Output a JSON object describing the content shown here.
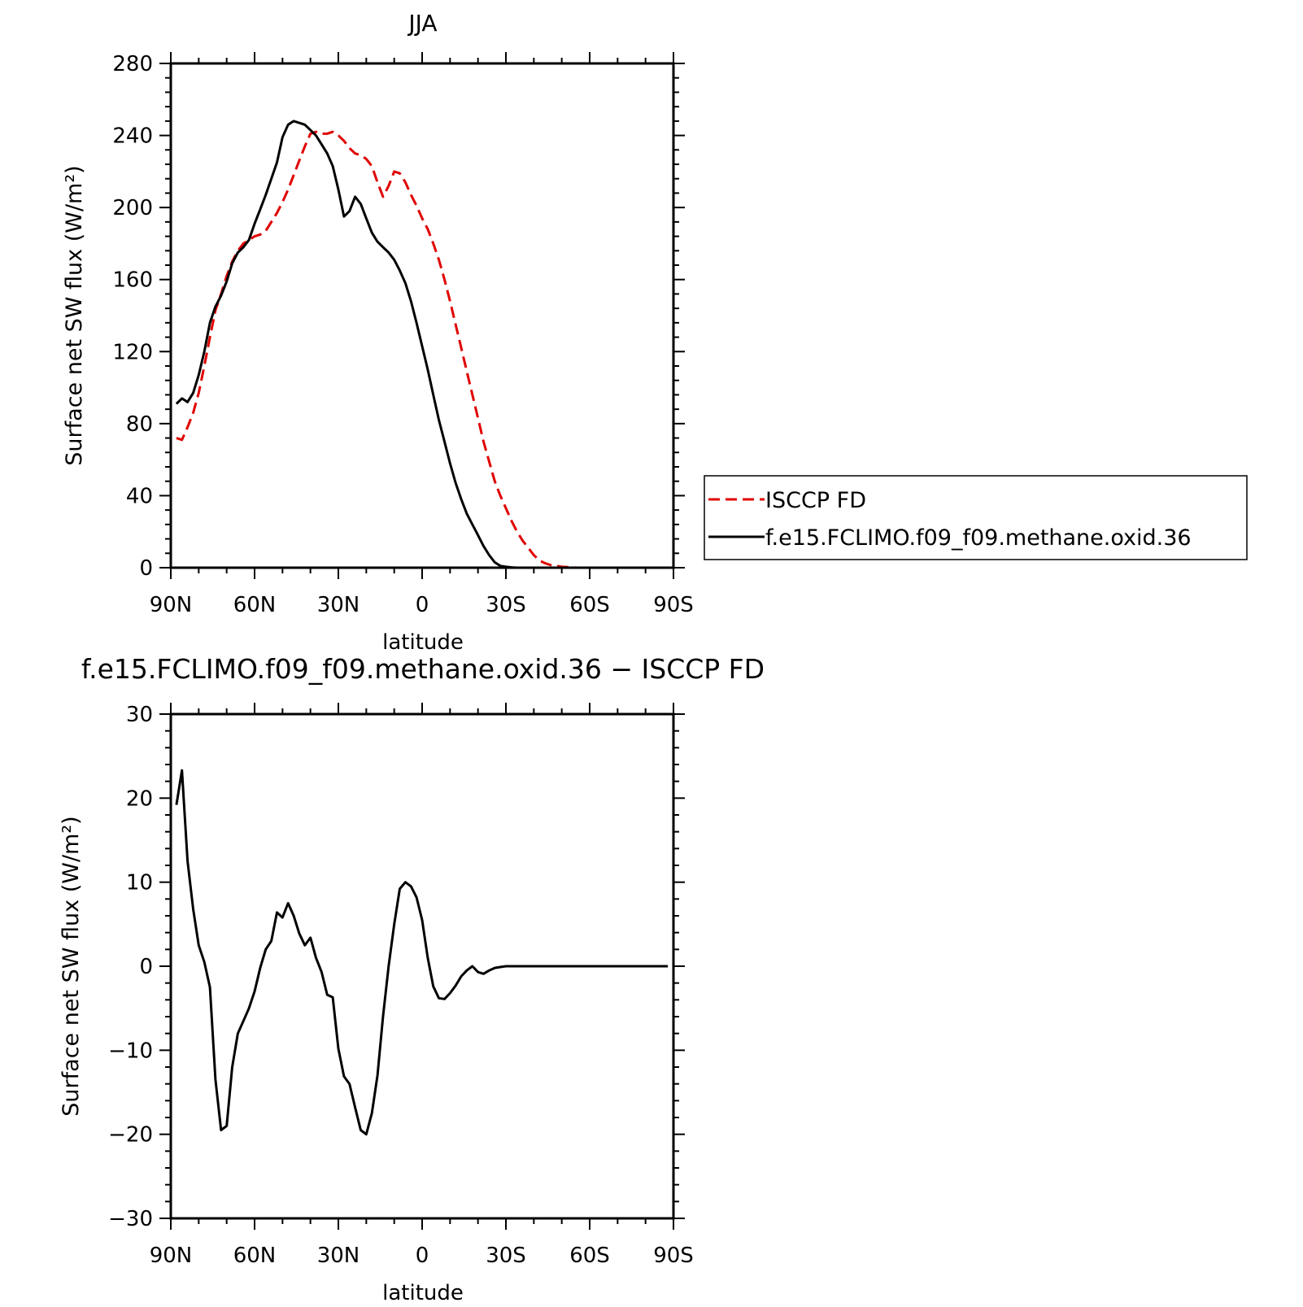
{
  "chart_data": [
    {
      "type": "line",
      "title": "JJA",
      "xlabel": "latitude",
      "ylabel": "Surface net SW flux (W/m²)",
      "xlim": [
        90,
        -90
      ],
      "ylim": [
        0,
        280
      ],
      "xticks": [
        90,
        60,
        30,
        0,
        -30,
        -60,
        -90
      ],
      "xtick_labels": [
        "90N",
        "60N",
        "30N",
        "0",
        "30S",
        "60S",
        "90S"
      ],
      "yticks": [
        0,
        40,
        80,
        120,
        160,
        200,
        240,
        280
      ],
      "ytick_labels": [
        "0",
        "40",
        "80",
        "120",
        "160",
        "200",
        "240",
        "280"
      ],
      "legend_position": "right, outside plot",
      "series": [
        {
          "name": "ISCCP FD",
          "color": "#e00000",
          "dash": "dashed",
          "x": [
            88,
            86,
            84,
            82,
            80,
            78,
            76,
            74,
            72,
            70,
            68,
            66,
            64,
            62,
            60,
            58,
            56,
            54,
            52,
            50,
            48,
            46,
            44,
            42,
            40,
            38,
            36,
            34,
            32,
            30,
            28,
            26,
            24,
            22,
            20,
            18,
            16,
            14,
            12,
            10,
            8,
            6,
            4,
            2,
            0,
            -2,
            -4,
            -6,
            -8,
            -10,
            -12,
            -14,
            -16,
            -18,
            -20,
            -22,
            -24,
            -26,
            -28,
            -30,
            -32,
            -34,
            -36,
            -38,
            -40,
            -42,
            -44,
            -46,
            -48,
            -50,
            -52,
            -54,
            -56,
            -58,
            -60,
            -62,
            -64,
            -66,
            -68,
            -70,
            -72,
            -74,
            -76,
            -78,
            -80,
            -82,
            -84,
            -86,
            -88
          ],
          "y": [
            72,
            71,
            78,
            86,
            97,
            112,
            128,
            143,
            152,
            162,
            170,
            176,
            180,
            182,
            184,
            185,
            187,
            192,
            197,
            203,
            210,
            218,
            226,
            234,
            241,
            242,
            241,
            241,
            242,
            240,
            237,
            233,
            230,
            229,
            227,
            223,
            214,
            206,
            212,
            220,
            219,
            214,
            207,
            201,
            194,
            188,
            180,
            171,
            160,
            148,
            135,
            122,
            109,
            96,
            83,
            70,
            59,
            48,
            40,
            33,
            26,
            20,
            15,
            11,
            7,
            4,
            2.5,
            1.5,
            1,
            0.5,
            0.3,
            0.1,
            0,
            0,
            0,
            0,
            0,
            0,
            0,
            0,
            0,
            0,
            0,
            0,
            0,
            0,
            0,
            0,
            0
          ]
        },
        {
          "name": "f.e15.FCLIMO.f09_f09.methane.oxid.36",
          "color": "#000000",
          "dash": "solid",
          "x": [
            88,
            86,
            84,
            82,
            80,
            78,
            76,
            74,
            72,
            70,
            68,
            66,
            64,
            62,
            60,
            58,
            56,
            54,
            52,
            50,
            48,
            46,
            44,
            42,
            40,
            38,
            36,
            34,
            32,
            30,
            28,
            26,
            24,
            22,
            20,
            18,
            16,
            14,
            12,
            10,
            8,
            6,
            4,
            2,
            0,
            -2,
            -4,
            -6,
            -8,
            -10,
            -12,
            -14,
            -16,
            -18,
            -20,
            -22,
            -24,
            -26,
            -28,
            -30,
            -32,
            -34,
            -36,
            -38,
            -40,
            -42,
            -44,
            -46,
            -48,
            -50,
            -52,
            -54,
            -56,
            -58,
            -60,
            -62,
            -64,
            -66,
            -68,
            -70,
            -72,
            -74,
            -76,
            -78,
            -80,
            -82,
            -84,
            -86,
            -88
          ],
          "y": [
            91,
            94,
            92,
            97,
            107,
            120,
            136,
            145,
            151,
            159,
            169,
            175,
            178,
            182,
            191,
            199,
            207,
            216,
            225,
            239,
            246,
            248,
            247,
            246,
            243,
            240,
            235,
            230,
            223,
            210,
            195,
            198,
            206,
            202,
            194,
            186,
            181,
            178,
            175,
            171,
            165,
            158,
            148,
            136,
            123,
            110,
            96,
            82,
            70,
            58,
            47,
            38,
            30,
            24,
            18,
            12,
            7,
            3,
            1,
            0.5,
            0.2,
            0,
            0,
            0,
            0,
            0,
            0,
            0,
            0,
            0,
            0,
            0,
            0,
            0,
            0,
            0,
            0,
            0,
            0,
            0,
            0,
            0,
            0,
            0,
            0,
            0,
            0,
            0,
            0
          ]
        }
      ]
    },
    {
      "type": "line",
      "title": "f.e15.FCLIMO.f09_f09.methane.oxid.36 − ISCCP FD",
      "xlabel": "latitude",
      "ylabel": "Surface net SW flux (W/m²)",
      "xlim": [
        90,
        -90
      ],
      "ylim": [
        -30,
        30
      ],
      "xticks": [
        90,
        60,
        30,
        0,
        -30,
        -60,
        -90
      ],
      "xtick_labels": [
        "90N",
        "60N",
        "30N",
        "0",
        "30S",
        "60S",
        "90S"
      ],
      "yticks": [
        -30,
        -20,
        -10,
        0,
        10,
        20,
        30
      ],
      "ytick_labels": [
        "−30",
        "−20",
        "−10",
        "0",
        "10",
        "20",
        "30"
      ],
      "series": [
        {
          "color": "#000000",
          "dash": "solid",
          "x": [
            88,
            86,
            84,
            82,
            80,
            78,
            76,
            74,
            72,
            70,
            68,
            66,
            64,
            62,
            60,
            58,
            56,
            54,
            52,
            50,
            48,
            46,
            44,
            42,
            40,
            38,
            36,
            34,
            32,
            30,
            28,
            26,
            24,
            22,
            20,
            18,
            16,
            14,
            12,
            10,
            8,
            6,
            4,
            2,
            0,
            -2,
            -4,
            -6,
            -8,
            -10,
            -12,
            -14,
            -16,
            -18,
            -20,
            -22,
            -24,
            -26,
            -28,
            -30,
            -32,
            -34,
            -36,
            -38,
            -40,
            -42,
            -44,
            -46,
            -48,
            -50,
            -52,
            -54,
            -56,
            -58,
            -60,
            -62,
            -64,
            -66,
            -68,
            -70,
            -72,
            -74,
            -76,
            -78,
            -80,
            -82,
            -84,
            -86,
            -88
          ],
          "y": [
            19.2,
            23.3,
            12.5,
            6.8,
            2.5,
            0.5,
            -2.5,
            -13.5,
            -19.5,
            -19.0,
            -12.0,
            -8.0,
            -6.5,
            -5.0,
            -3.0,
            -0.2,
            2.0,
            3.0,
            6.4,
            5.8,
            7.5,
            6.0,
            3.9,
            2.5,
            3.4,
            1.0,
            -0.7,
            -3.4,
            -3.7,
            -9.8,
            -13.1,
            -14.0,
            -16.8,
            -19.5,
            -20.0,
            -17.5,
            -13.0,
            -6.0,
            0.0,
            5.0,
            9.2,
            10.0,
            9.5,
            8.2,
            5.5,
            1.0,
            -2.4,
            -3.8,
            -3.9,
            -3.2,
            -2.3,
            -1.2,
            -0.5,
            0.0,
            -0.7,
            -0.9,
            -0.5,
            -0.2,
            -0.1,
            0.0,
            0.0,
            0.0,
            0.0,
            0.0,
            0.0,
            0.0,
            0.0,
            0.0,
            0.0,
            0.0,
            0.0,
            0.0,
            0.0,
            0.0,
            0.0,
            0.0,
            0.0,
            0.0,
            0.0,
            0.0,
            0.0,
            0.0,
            0.0,
            0.0,
            0.0,
            0.0,
            0.0,
            0.0,
            0.0
          ]
        }
      ]
    }
  ]
}
